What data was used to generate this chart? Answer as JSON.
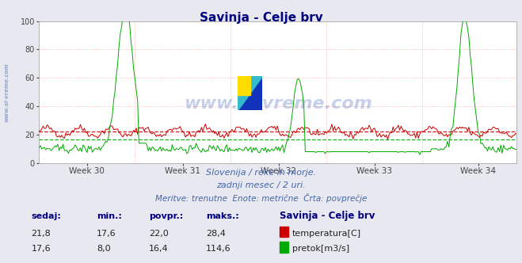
{
  "title": "Savinja - Celje brv",
  "title_color": "#000080",
  "bg_color": "#e8e8f0",
  "plot_bg_color": "#ffffff",
  "ylim": [
    0,
    100
  ],
  "yticks": [
    0,
    20,
    40,
    60,
    80,
    100
  ],
  "week_labels": [
    "Week 30",
    "Week 31",
    "Week 32",
    "Week 33",
    "Week 34"
  ],
  "temp_color": "#cc0000",
  "flow_color": "#00aa00",
  "temp_avg": 22.0,
  "flow_avg": 16.4,
  "grid_color": "#ffaaaa",
  "watermark": "www.si-vreme.com",
  "watermark_side": "www.si-vreme.com",
  "subtitle1": "Slovenija / reke in morje.",
  "subtitle2": "zadnji mesec / 2 uri.",
  "subtitle3": "Meritve: trenutne  Enote: metrične  Črta: povprečje",
  "subtitle_color": "#4466aa",
  "label_color": "#000080",
  "stat_color": "#222222",
  "n_points": 360,
  "sedaj_temp": "21,8",
  "min_temp": "17,6",
  "povpr_temp": "22,0",
  "maks_temp": "28,4",
  "sedaj_flow": "17,6",
  "min_flow": "8,0",
  "povpr_flow": "16,4",
  "maks_flow": "114,6"
}
